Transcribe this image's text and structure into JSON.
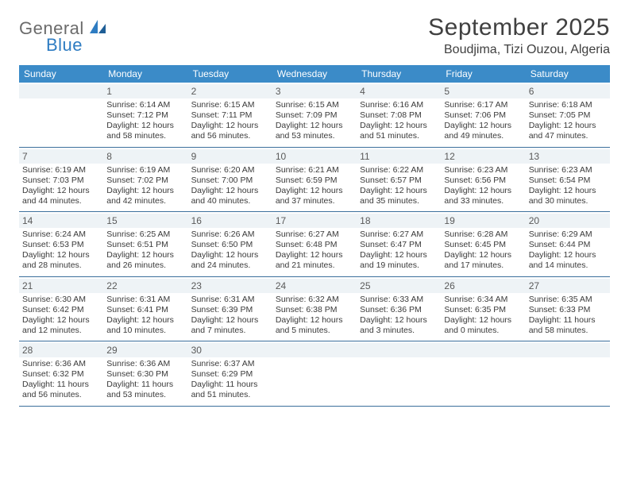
{
  "branding": {
    "word1": "General",
    "word2": "Blue",
    "color_general": "#6b6b6b",
    "color_blue": "#2e7cc2"
  },
  "title": "September 2025",
  "location": "Boudjima, Tizi Ouzou, Algeria",
  "header_bg": "#3b8bc8",
  "daynum_bg": "#eef3f6",
  "row_border": "#3b6f9c",
  "dow": [
    "Sunday",
    "Monday",
    "Tuesday",
    "Wednesday",
    "Thursday",
    "Friday",
    "Saturday"
  ],
  "weeks": [
    [
      {
        "n": "",
        "sr": "",
        "ss": "",
        "dl1": "",
        "dl2": ""
      },
      {
        "n": "1",
        "sr": "Sunrise: 6:14 AM",
        "ss": "Sunset: 7:12 PM",
        "dl1": "Daylight: 12 hours",
        "dl2": "and 58 minutes."
      },
      {
        "n": "2",
        "sr": "Sunrise: 6:15 AM",
        "ss": "Sunset: 7:11 PM",
        "dl1": "Daylight: 12 hours",
        "dl2": "and 56 minutes."
      },
      {
        "n": "3",
        "sr": "Sunrise: 6:15 AM",
        "ss": "Sunset: 7:09 PM",
        "dl1": "Daylight: 12 hours",
        "dl2": "and 53 minutes."
      },
      {
        "n": "4",
        "sr": "Sunrise: 6:16 AM",
        "ss": "Sunset: 7:08 PM",
        "dl1": "Daylight: 12 hours",
        "dl2": "and 51 minutes."
      },
      {
        "n": "5",
        "sr": "Sunrise: 6:17 AM",
        "ss": "Sunset: 7:06 PM",
        "dl1": "Daylight: 12 hours",
        "dl2": "and 49 minutes."
      },
      {
        "n": "6",
        "sr": "Sunrise: 6:18 AM",
        "ss": "Sunset: 7:05 PM",
        "dl1": "Daylight: 12 hours",
        "dl2": "and 47 minutes."
      }
    ],
    [
      {
        "n": "7",
        "sr": "Sunrise: 6:19 AM",
        "ss": "Sunset: 7:03 PM",
        "dl1": "Daylight: 12 hours",
        "dl2": "and 44 minutes."
      },
      {
        "n": "8",
        "sr": "Sunrise: 6:19 AM",
        "ss": "Sunset: 7:02 PM",
        "dl1": "Daylight: 12 hours",
        "dl2": "and 42 minutes."
      },
      {
        "n": "9",
        "sr": "Sunrise: 6:20 AM",
        "ss": "Sunset: 7:00 PM",
        "dl1": "Daylight: 12 hours",
        "dl2": "and 40 minutes."
      },
      {
        "n": "10",
        "sr": "Sunrise: 6:21 AM",
        "ss": "Sunset: 6:59 PM",
        "dl1": "Daylight: 12 hours",
        "dl2": "and 37 minutes."
      },
      {
        "n": "11",
        "sr": "Sunrise: 6:22 AM",
        "ss": "Sunset: 6:57 PM",
        "dl1": "Daylight: 12 hours",
        "dl2": "and 35 minutes."
      },
      {
        "n": "12",
        "sr": "Sunrise: 6:23 AM",
        "ss": "Sunset: 6:56 PM",
        "dl1": "Daylight: 12 hours",
        "dl2": "and 33 minutes."
      },
      {
        "n": "13",
        "sr": "Sunrise: 6:23 AM",
        "ss": "Sunset: 6:54 PM",
        "dl1": "Daylight: 12 hours",
        "dl2": "and 30 minutes."
      }
    ],
    [
      {
        "n": "14",
        "sr": "Sunrise: 6:24 AM",
        "ss": "Sunset: 6:53 PM",
        "dl1": "Daylight: 12 hours",
        "dl2": "and 28 minutes."
      },
      {
        "n": "15",
        "sr": "Sunrise: 6:25 AM",
        "ss": "Sunset: 6:51 PM",
        "dl1": "Daylight: 12 hours",
        "dl2": "and 26 minutes."
      },
      {
        "n": "16",
        "sr": "Sunrise: 6:26 AM",
        "ss": "Sunset: 6:50 PM",
        "dl1": "Daylight: 12 hours",
        "dl2": "and 24 minutes."
      },
      {
        "n": "17",
        "sr": "Sunrise: 6:27 AM",
        "ss": "Sunset: 6:48 PM",
        "dl1": "Daylight: 12 hours",
        "dl2": "and 21 minutes."
      },
      {
        "n": "18",
        "sr": "Sunrise: 6:27 AM",
        "ss": "Sunset: 6:47 PM",
        "dl1": "Daylight: 12 hours",
        "dl2": "and 19 minutes."
      },
      {
        "n": "19",
        "sr": "Sunrise: 6:28 AM",
        "ss": "Sunset: 6:45 PM",
        "dl1": "Daylight: 12 hours",
        "dl2": "and 17 minutes."
      },
      {
        "n": "20",
        "sr": "Sunrise: 6:29 AM",
        "ss": "Sunset: 6:44 PM",
        "dl1": "Daylight: 12 hours",
        "dl2": "and 14 minutes."
      }
    ],
    [
      {
        "n": "21",
        "sr": "Sunrise: 6:30 AM",
        "ss": "Sunset: 6:42 PM",
        "dl1": "Daylight: 12 hours",
        "dl2": "and 12 minutes."
      },
      {
        "n": "22",
        "sr": "Sunrise: 6:31 AM",
        "ss": "Sunset: 6:41 PM",
        "dl1": "Daylight: 12 hours",
        "dl2": "and 10 minutes."
      },
      {
        "n": "23",
        "sr": "Sunrise: 6:31 AM",
        "ss": "Sunset: 6:39 PM",
        "dl1": "Daylight: 12 hours",
        "dl2": "and 7 minutes."
      },
      {
        "n": "24",
        "sr": "Sunrise: 6:32 AM",
        "ss": "Sunset: 6:38 PM",
        "dl1": "Daylight: 12 hours",
        "dl2": "and 5 minutes."
      },
      {
        "n": "25",
        "sr": "Sunrise: 6:33 AM",
        "ss": "Sunset: 6:36 PM",
        "dl1": "Daylight: 12 hours",
        "dl2": "and 3 minutes."
      },
      {
        "n": "26",
        "sr": "Sunrise: 6:34 AM",
        "ss": "Sunset: 6:35 PM",
        "dl1": "Daylight: 12 hours",
        "dl2": "and 0 minutes."
      },
      {
        "n": "27",
        "sr": "Sunrise: 6:35 AM",
        "ss": "Sunset: 6:33 PM",
        "dl1": "Daylight: 11 hours",
        "dl2": "and 58 minutes."
      }
    ],
    [
      {
        "n": "28",
        "sr": "Sunrise: 6:36 AM",
        "ss": "Sunset: 6:32 PM",
        "dl1": "Daylight: 11 hours",
        "dl2": "and 56 minutes."
      },
      {
        "n": "29",
        "sr": "Sunrise: 6:36 AM",
        "ss": "Sunset: 6:30 PM",
        "dl1": "Daylight: 11 hours",
        "dl2": "and 53 minutes."
      },
      {
        "n": "30",
        "sr": "Sunrise: 6:37 AM",
        "ss": "Sunset: 6:29 PM",
        "dl1": "Daylight: 11 hours",
        "dl2": "and 51 minutes."
      },
      {
        "n": "",
        "sr": "",
        "ss": "",
        "dl1": "",
        "dl2": ""
      },
      {
        "n": "",
        "sr": "",
        "ss": "",
        "dl1": "",
        "dl2": ""
      },
      {
        "n": "",
        "sr": "",
        "ss": "",
        "dl1": "",
        "dl2": ""
      },
      {
        "n": "",
        "sr": "",
        "ss": "",
        "dl1": "",
        "dl2": ""
      }
    ]
  ]
}
